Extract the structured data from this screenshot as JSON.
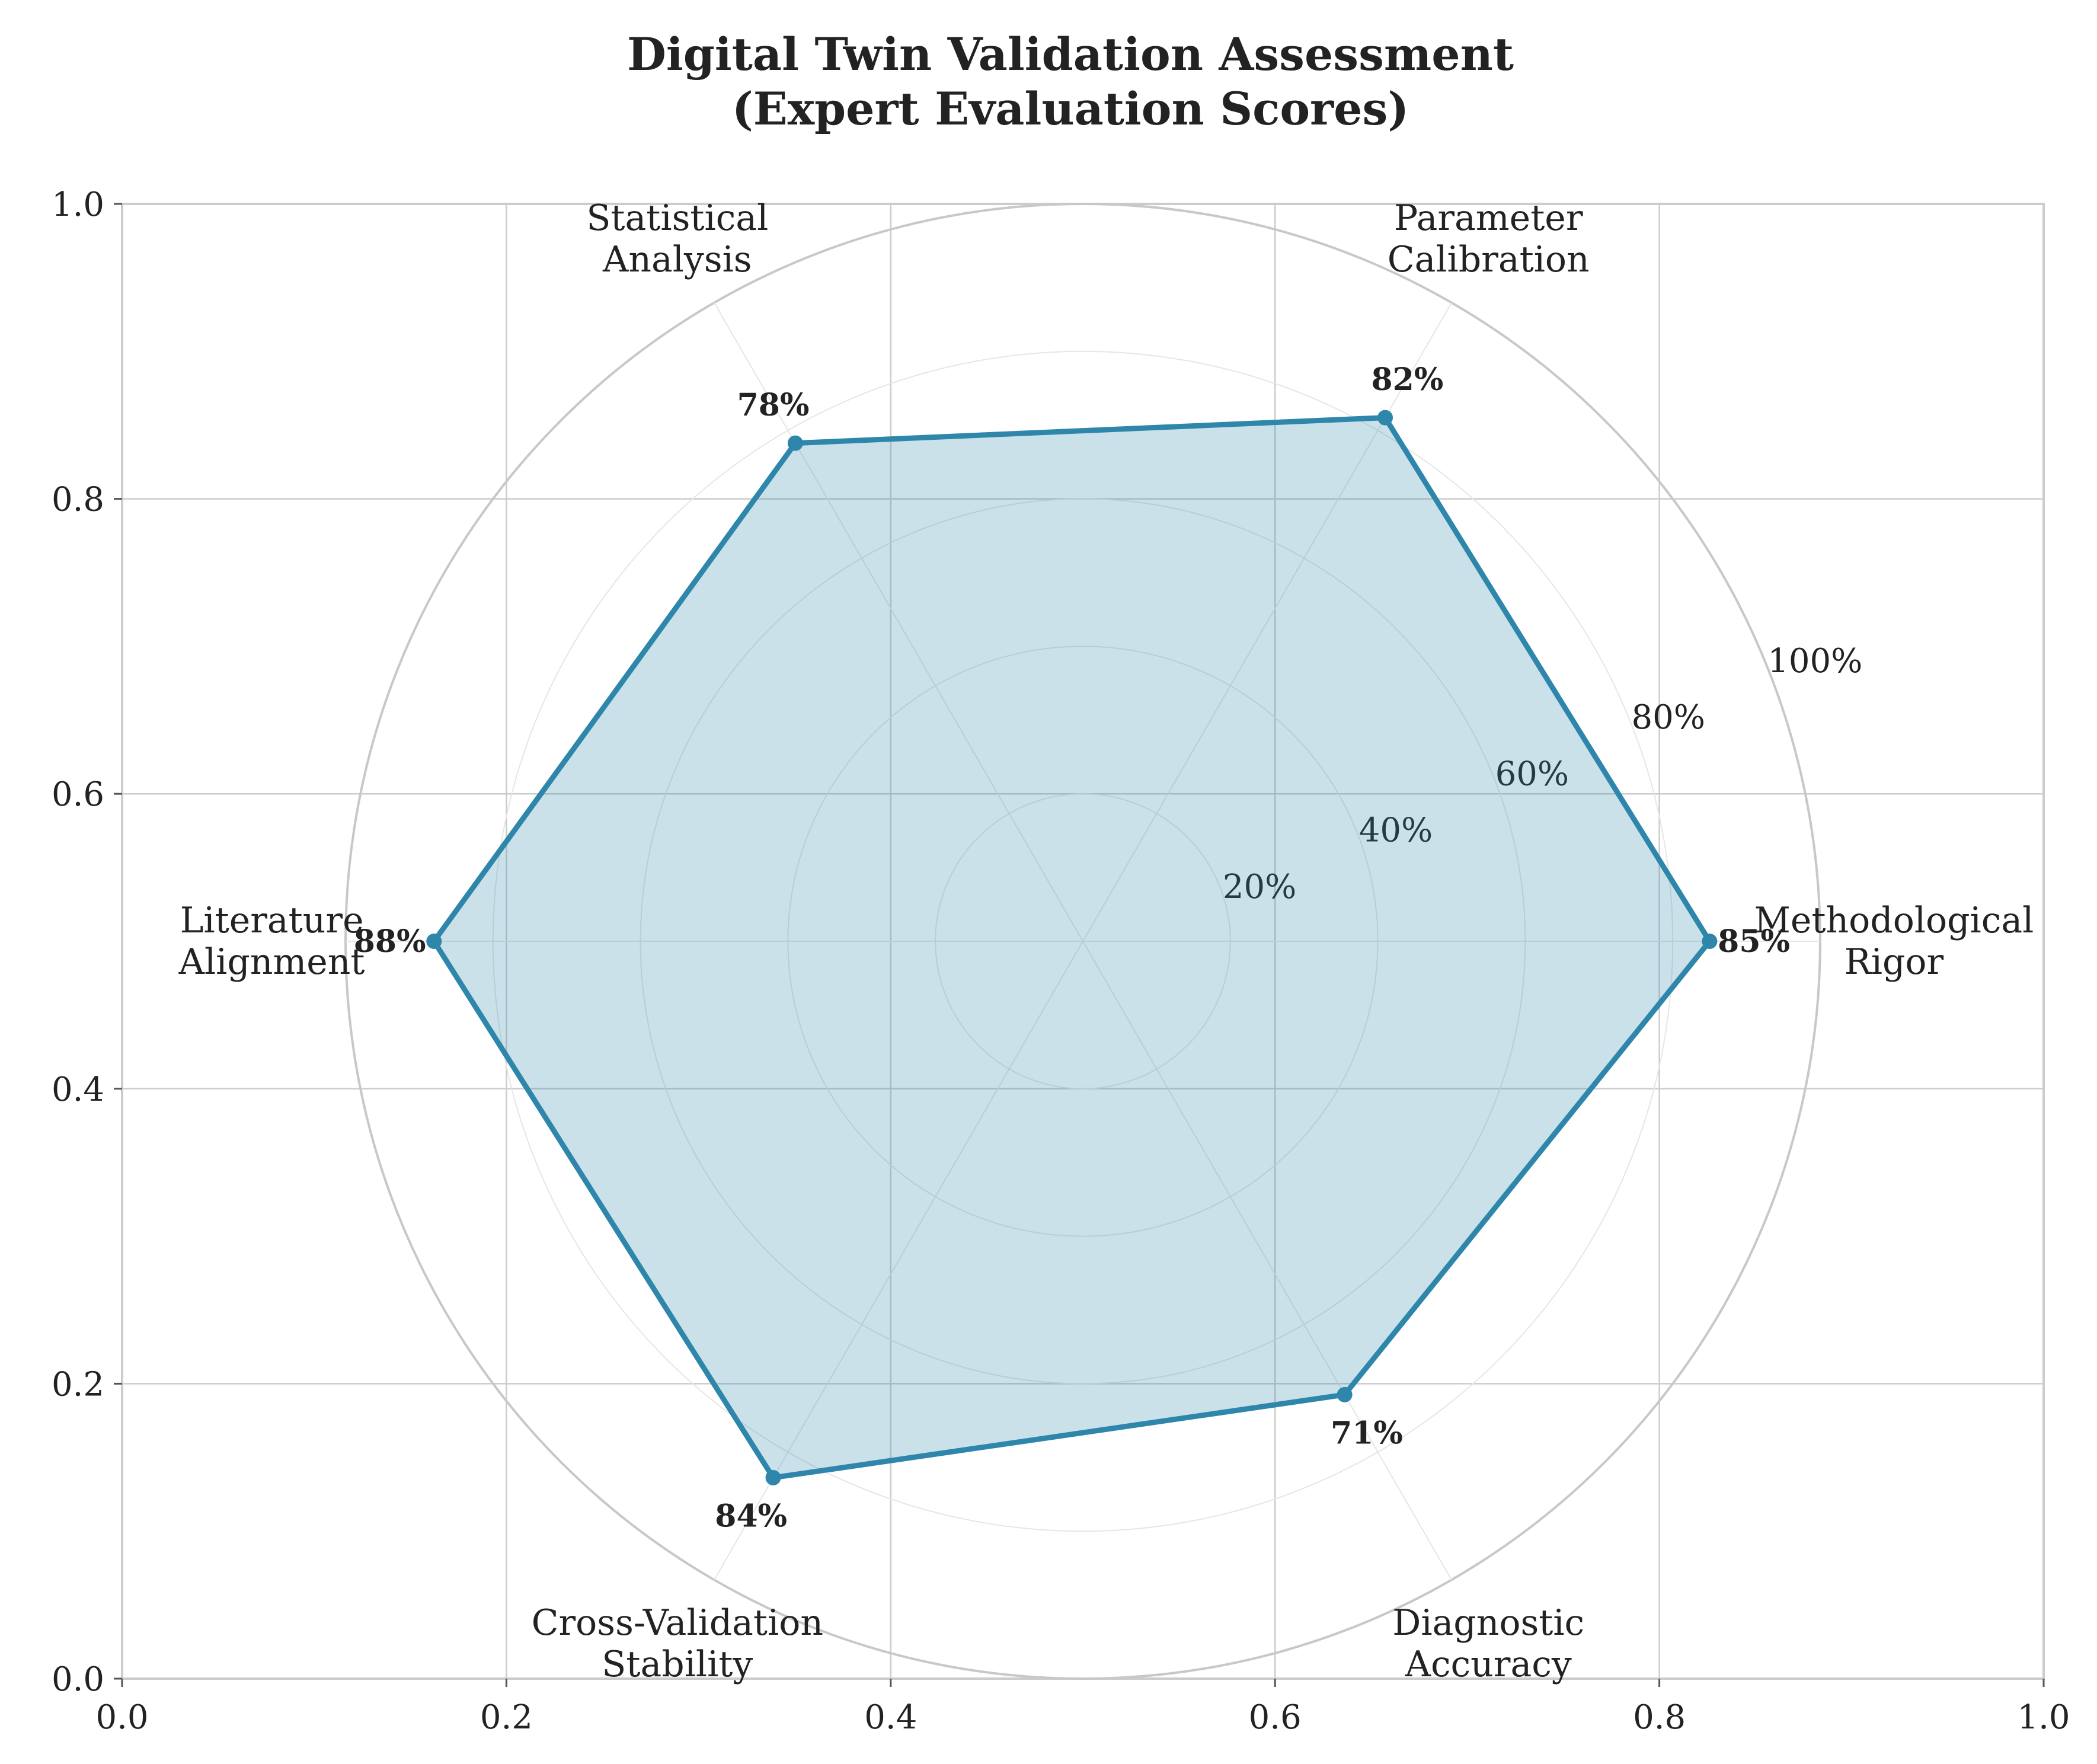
{
  "title_line1": "Digital Twin Validation Assessment",
  "title_line2": "(Expert Evaluation Scores)",
  "chart_data": {
    "type": "radar",
    "categories": [
      [
        "Methodological",
        "Rigor"
      ],
      [
        "Parameter",
        "Calibration"
      ],
      [
        "Statistical",
        "Analysis"
      ],
      [
        "Literature",
        "Alignment"
      ],
      [
        "Cross-Validation",
        "Stability"
      ],
      [
        "Diagnostic",
        "Accuracy"
      ]
    ],
    "series": [
      {
        "values": [
          0.85,
          0.82,
          0.78,
          0.88,
          0.84,
          0.71
        ]
      }
    ],
    "value_labels": [
      "85%",
      "82%",
      "78%",
      "88%",
      "84%",
      "71%"
    ],
    "radial_ticks": [
      0.2,
      0.4,
      0.6,
      0.8,
      1.0
    ],
    "radial_tick_labels": [
      "20%",
      "40%",
      "60%",
      "80%",
      "100%"
    ],
    "rlim": [
      0,
      1
    ],
    "cartesian_x_ticks": [
      "0.0",
      "0.2",
      "0.4",
      "0.6",
      "0.8",
      "1.0"
    ],
    "cartesian_y_ticks": [
      "0.0",
      "0.2",
      "0.4",
      "0.6",
      "0.8",
      "1.0"
    ],
    "grid": true,
    "colors": {
      "line": "#2e86ab",
      "fill": "#2e86ab",
      "grid": "#cccccc",
      "axes": "#cccccc"
    }
  }
}
